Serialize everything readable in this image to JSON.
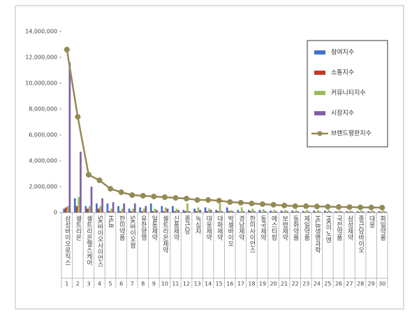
{
  "chart_data": {
    "type": "bar-line",
    "categories": [
      "삼성바이오로직스",
      "셀트리온",
      "셀트리온헬스케어",
      "SK바이오사이언스",
      "HLB",
      "한미약품",
      "SK바이오팜",
      "유한양행",
      "일동제약",
      "셀트리온제약",
      "신풍제약",
      "종근당",
      "녹십자",
      "대웅제약",
      "대화제약",
      "박셀바이오",
      "경남제약",
      "한미사이언스",
      "동국제약",
      "에스티팜",
      "보령제약",
      "동화약품",
      "제일약품",
      "HLB생명과학",
      "HK이노엔",
      "국전약품",
      "삼성제약",
      "종근당바이오",
      "대웅",
      "화일약품"
    ],
    "ranks": [
      1,
      2,
      3,
      4,
      5,
      6,
      7,
      8,
      9,
      10,
      11,
      12,
      13,
      14,
      15,
      16,
      17,
      18,
      19,
      20,
      21,
      22,
      23,
      24,
      25,
      26,
      27,
      28,
      29,
      30
    ],
    "series": [
      {
        "name": "참여지수",
        "color": "#4472c4",
        "kind": "bar",
        "values": [
          300000,
          1100000,
          500000,
          700000,
          700000,
          500000,
          300000,
          400000,
          700000,
          500000,
          500000,
          200000,
          300000,
          400000,
          200000,
          400000,
          200000,
          200000,
          200000,
          150000,
          150000,
          150000,
          120000,
          150000,
          150000,
          100000,
          100000,
          100000,
          100000,
          100000
        ]
      },
      {
        "name": "소통지수",
        "color": "#c0392b",
        "kind": "bar",
        "values": [
          400000,
          500000,
          300000,
          300000,
          100000,
          100000,
          100000,
          100000,
          100000,
          100000,
          100000,
          100000,
          100000,
          100000,
          100000,
          100000,
          50000,
          100000,
          50000,
          50000,
          50000,
          50000,
          50000,
          50000,
          50000,
          50000,
          50000,
          50000,
          50000,
          50000
        ]
      },
      {
        "name": "커뮤니티지수",
        "color": "#9bbb59",
        "kind": "bar",
        "values": [
          500000,
          1200000,
          500000,
          500000,
          300000,
          300000,
          300000,
          300000,
          300000,
          400000,
          300000,
          700000,
          400000,
          300000,
          700000,
          200000,
          400000,
          300000,
          250000,
          200000,
          200000,
          200000,
          200000,
          200000,
          200000,
          150000,
          150000,
          150000,
          150000,
          150000
        ]
      },
      {
        "name": "시장지수",
        "color": "#7f5fa8",
        "kind": "bar",
        "values": [
          11600000,
          4700000,
          2000000,
          1100000,
          800000,
          700000,
          700000,
          500000,
          200000,
          300000,
          200000,
          100000,
          200000,
          200000,
          100000,
          100000,
          100000,
          100000,
          100000,
          100000,
          100000,
          80000,
          80000,
          80000,
          80000,
          80000,
          80000,
          80000,
          80000,
          80000
        ]
      },
      {
        "name": "브랜드평판지수",
        "color": "#948a54",
        "kind": "line",
        "values": [
          12600000,
          7400000,
          2920000,
          2490000,
          1840000,
          1570000,
          1350000,
          1300000,
          1240000,
          1190000,
          1130000,
          1080000,
          970000,
          970000,
          920000,
          810000,
          760000,
          700000,
          650000,
          600000,
          540000,
          490000,
          490000,
          470000,
          450000,
          430000,
          420000,
          400000,
          390000,
          380000
        ]
      }
    ],
    "ylim": [
      0,
      14000000
    ],
    "yticks": [
      {
        "value": 0,
        "label": "0"
      },
      {
        "value": 2000000,
        "label": "2,000,000"
      },
      {
        "value": 4000000,
        "label": "4,000,000"
      },
      {
        "value": 6000000,
        "label": "6,000,000"
      },
      {
        "value": 8000000,
        "label": "8,000,000"
      },
      {
        "value": 10000000,
        "label": "10,000,000"
      },
      {
        "value": 12000000,
        "label": "12,000,000"
      },
      {
        "value": 14000000,
        "label": "14,000,000"
      }
    ]
  }
}
